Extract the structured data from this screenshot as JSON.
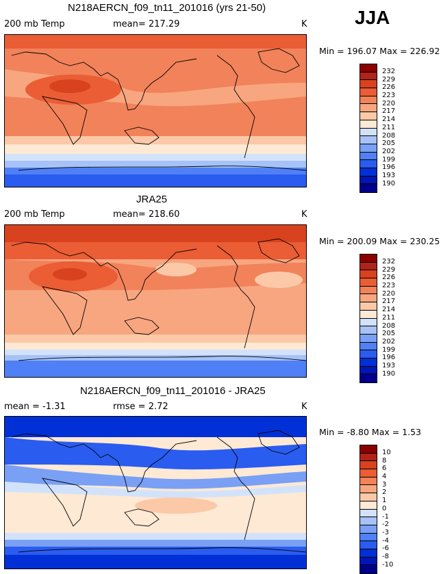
{
  "season": "JJA",
  "palette": [
    "#00008b",
    "#0016b5",
    "#0030d6",
    "#2a5cf0",
    "#5080f5",
    "#7aa0f5",
    "#a6c2f7",
    "#d2e2fb",
    "#fde9d4",
    "#fbc9a8",
    "#f7a680",
    "#f1825a",
    "#ea5d35",
    "#d9421e",
    "#b02418",
    "#8b0000"
  ],
  "panels": [
    {
      "title": "N218AERCN_f09_tn11_201016 (yrs 21-50)",
      "left_label": "200 mb Temp",
      "center_label": "mean= 217.29",
      "units": "K",
      "stats": "Min = 196.07 Max = 226.92",
      "colorbar_ticks": [
        "232",
        "229",
        "226",
        "223",
        "220",
        "217",
        "214",
        "211",
        "208",
        "205",
        "202",
        "199",
        "196",
        "193",
        "190"
      ]
    },
    {
      "title": "JRA25",
      "left_label": "200 mb Temp",
      "center_label": "mean= 218.60",
      "units": "K",
      "stats": "Min = 200.09 Max = 230.25",
      "colorbar_ticks": [
        "232",
        "229",
        "226",
        "223",
        "220",
        "217",
        "214",
        "211",
        "208",
        "205",
        "202",
        "199",
        "196",
        "193",
        "190"
      ]
    },
    {
      "title": "N218AERCN_f09_tn11_201016 - JRA25",
      "left_label": "mean =   -1.31",
      "center_label": "rmse =    2.72",
      "units": "K",
      "stats": "Min =  -8.80 Max =   1.53",
      "colorbar_ticks": [
        "10",
        "8",
        "6",
        "4",
        "3",
        "2",
        "1",
        "0",
        "-1",
        "-2",
        "-3",
        "-4",
        "-6",
        "-8",
        "-10"
      ]
    }
  ]
}
